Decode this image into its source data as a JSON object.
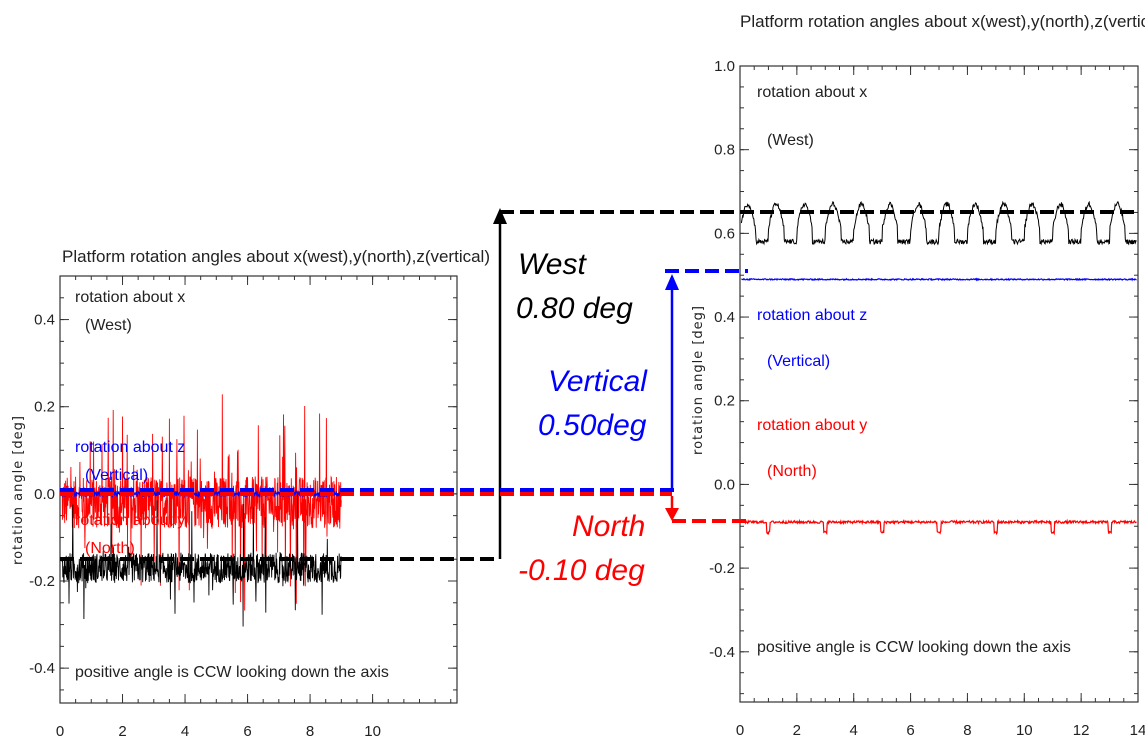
{
  "chart_data": [
    {
      "type": "line",
      "title": "Platform rotation angles about x(west),y(north),z(vertical)",
      "ylabel": "rotation angle [deg]",
      "xlim": [
        0,
        12.7
      ],
      "ylim": [
        -0.48,
        0.5
      ],
      "x_ticks": [
        0,
        2,
        4,
        6,
        8,
        10
      ],
      "y_ticks": [
        -0.4,
        -0.2,
        0.0,
        0.2,
        0.4
      ],
      "series": [
        {
          "name": "rotation about x",
          "sub": "(West)",
          "color": "#000000",
          "mean": -0.17,
          "x_end": 9.0
        },
        {
          "name": "rotation about z",
          "sub": "(Vertical)",
          "color": "#0000ff",
          "mean": 0.0,
          "x_end": 9.0
        },
        {
          "name": "rotation about y",
          "sub": "(North)",
          "color": "#ff0000",
          "mean": -0.02,
          "x_end": 9.0
        }
      ],
      "footnote": "positive angle is CCW looking down the axis"
    },
    {
      "type": "line",
      "title": "Platform rotation angles about x(west),y(north),z(vertical)",
      "ylabel": "rotation angle [deg]",
      "xlim": [
        0,
        14
      ],
      "ylim": [
        -0.52,
        1.0
      ],
      "x_ticks": [
        0,
        2,
        4,
        6,
        8,
        10,
        12,
        14
      ],
      "y_ticks": [
        -0.4,
        -0.2,
        0.0,
        0.2,
        0.4,
        0.6,
        0.8,
        1.0
      ],
      "series": [
        {
          "name": "rotation about x",
          "sub": "(West)",
          "color": "#000000",
          "mean": 0.62
        },
        {
          "name": "rotation about z",
          "sub": "(Vertical)",
          "color": "#0000ff",
          "mean": 0.49
        },
        {
          "name": "rotation about y",
          "sub": "(North)",
          "color": "#ff0000",
          "mean": -0.09
        }
      ],
      "footnote": "positive angle is CCW looking down the axis"
    }
  ],
  "annotations": {
    "west": {
      "line1": "West",
      "line2": "0.80 deg",
      "color": "#000000"
    },
    "vertical": {
      "line1": "Vertical",
      "line2": "0.50deg",
      "color": "#0000ff"
    },
    "north": {
      "line1": "North",
      "line2": "-0.10 deg",
      "color": "#ff0000"
    }
  }
}
